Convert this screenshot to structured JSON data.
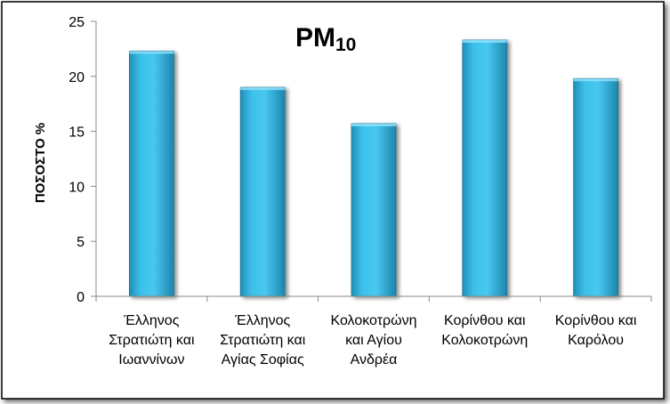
{
  "chart_data": {
    "type": "bar",
    "title": "PM",
    "title_subscript": "10",
    "xlabel": "",
    "ylabel": "ΠΟΣΟΣΤΟ %",
    "ylim": [
      0,
      25
    ],
    "yticks": [
      "0",
      "5",
      "10",
      "15",
      "20",
      "25"
    ],
    "grid": false,
    "legend": "none",
    "categories": [
      [
        "Έλληνος",
        "Στρατιώτη και",
        "Ιωαννίνων"
      ],
      [
        "Έλληνος",
        "Στρατιώτη και",
        "Αγίας Σοφίας"
      ],
      [
        "Κολοκοτρώνη",
        "και Αγίου",
        "Ανδρέα"
      ],
      [
        "Κορίνθου και",
        "Κολοκοτρώνη"
      ],
      [
        "Κορίνθου και",
        "Καρόλου"
      ]
    ],
    "values": [
      22.3,
      19.0,
      15.7,
      23.3,
      19.8
    ],
    "colors": {
      "bar_light": "#4dc8ee",
      "bar_mid": "#2fb0d8",
      "bar_dark": "#1a7fa5",
      "frame": "#000000"
    }
  }
}
